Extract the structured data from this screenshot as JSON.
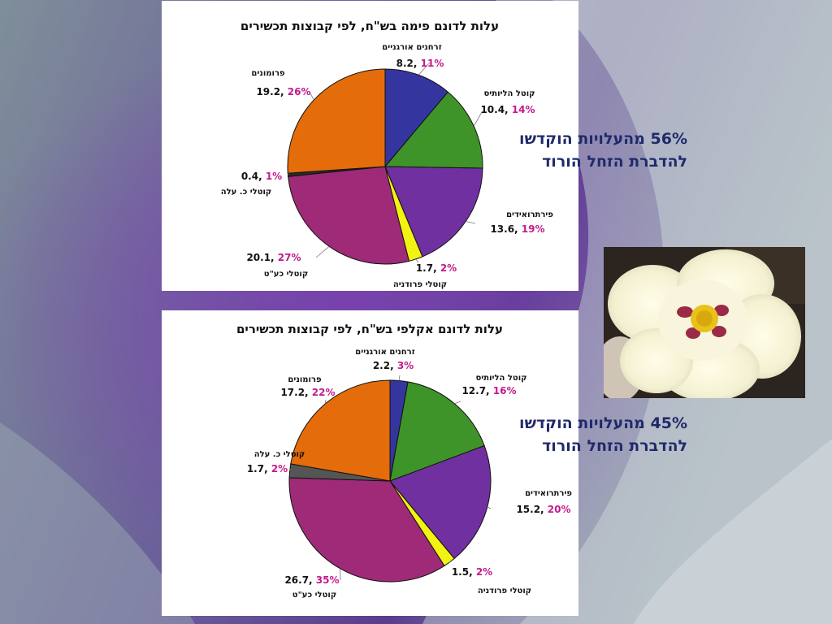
{
  "slide": {
    "text_top": {
      "line1": "56% מהעלויות הוקדשו",
      "line2": "להדברת הזחל הורוד"
    },
    "text_bottom": {
      "line1": "45% מהעלויות הוקדשו",
      "line2": "להדברת הזחל הורוד"
    },
    "photo": {
      "icon": "cotton-flower-photo"
    }
  },
  "colors": {
    "accent_percent": "#c41a8b",
    "text_blue": "#1f2a6b"
  },
  "chart_data": [
    {
      "type": "pie",
      "title": "עלות לדונם פימה בש\"ח, לפי קבוצות תכשירים",
      "slices": [
        {
          "label": "זרחנים אורגניים",
          "value": 8.2,
          "percent": "11%",
          "color": "#3535a0"
        },
        {
          "label": "קוטל הליותיס",
          "value": 10.4,
          "percent": "14%",
          "color": "#3e9428"
        },
        {
          "label": "פירתרואידים",
          "value": 13.6,
          "percent": "19%",
          "color": "#7030a0"
        },
        {
          "label": "קוטלי פרודניה",
          "value": 1.7,
          "percent": "2%",
          "color": "#f2f213"
        },
        {
          "label": "קוטלי כע\"ט",
          "value": 20.1,
          "percent": "27%",
          "color": "#9e2a78"
        },
        {
          "label": "קוטלי כ. עלה",
          "value": 0.4,
          "percent": "1%",
          "color": "#2a2a2a"
        },
        {
          "label": "פרומונים",
          "value": 19.2,
          "percent": "26%",
          "color": "#e46c0a"
        }
      ]
    },
    {
      "type": "pie",
      "title": "עלות לדונם אקלפי בש\"ח, לפי קבוצות תכשירים",
      "slices": [
        {
          "label": "זרחנים אורגניים",
          "value": 2.2,
          "percent": "3%",
          "color": "#3535a0"
        },
        {
          "label": "קוטל הליותיס",
          "value": 12.7,
          "percent": "16%",
          "color": "#3e9428"
        },
        {
          "label": "פירתרואידים",
          "value": 15.2,
          "percent": "20%",
          "color": "#7030a0"
        },
        {
          "label": "קוטלי פרודניה",
          "value": 1.5,
          "percent": "2%",
          "color": "#f2f213"
        },
        {
          "label": "קוטלי כע\"ט",
          "value": 26.7,
          "percent": "35%",
          "color": "#9e2a78"
        },
        {
          "label": "קוטלי כ. עלה",
          "value": 1.7,
          "percent": "2%",
          "color": "#555555"
        },
        {
          "label": "פרומונים",
          "value": 17.2,
          "percent": "22%",
          "color": "#e46c0a"
        }
      ]
    }
  ]
}
